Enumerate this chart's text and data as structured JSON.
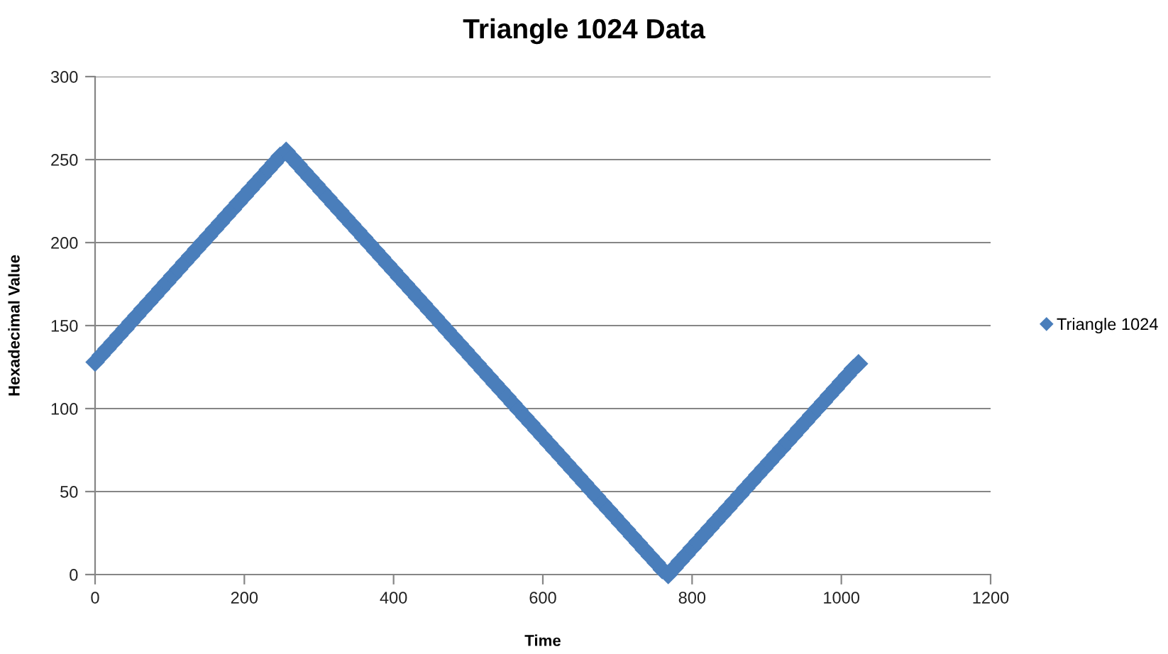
{
  "chart_data": {
    "type": "scatter",
    "title": "Triangle 1024 Data",
    "xlabel": "Time",
    "ylabel": "Hexadecimal Value",
    "x": [
      0,
      8,
      16,
      24,
      32,
      40,
      48,
      56,
      64,
      72,
      80,
      88,
      96,
      104,
      112,
      120,
      128,
      136,
      144,
      152,
      160,
      168,
      176,
      184,
      192,
      200,
      208,
      216,
      224,
      232,
      240,
      248,
      256,
      264,
      272,
      280,
      288,
      296,
      304,
      312,
      320,
      328,
      336,
      344,
      352,
      360,
      368,
      376,
      384,
      392,
      400,
      408,
      416,
      424,
      432,
      440,
      448,
      456,
      464,
      472,
      480,
      488,
      496,
      504,
      512,
      520,
      528,
      536,
      544,
      552,
      560,
      568,
      576,
      584,
      592,
      600,
      608,
      616,
      624,
      632,
      640,
      648,
      656,
      664,
      672,
      680,
      688,
      696,
      704,
      712,
      720,
      728,
      736,
      744,
      752,
      760,
      768,
      776,
      784,
      792,
      800,
      808,
      816,
      824,
      832,
      840,
      848,
      856,
      864,
      872,
      880,
      888,
      896,
      904,
      912,
      920,
      928,
      936,
      944,
      952,
      960,
      968,
      976,
      984,
      992,
      1000,
      1008,
      1016,
      1023
    ],
    "series": [
      {
        "name": "Triangle 1024",
        "color": "#4a7ebb",
        "values": [
          128,
          132,
          136,
          140,
          144,
          148,
          152,
          156,
          160,
          164,
          168,
          172,
          176,
          180,
          184,
          188,
          192,
          196,
          200,
          204,
          208,
          212,
          216,
          220,
          224,
          228,
          232,
          236,
          240,
          244,
          248,
          252,
          255,
          251,
          247,
          243,
          239,
          235,
          231,
          227,
          223,
          219,
          215,
          211,
          207,
          203,
          199,
          195,
          191,
          187,
          183,
          179,
          175,
          171,
          167,
          163,
          159,
          155,
          151,
          147,
          143,
          139,
          135,
          131,
          127,
          123,
          119,
          115,
          111,
          107,
          103,
          99,
          95,
          91,
          87,
          83,
          79,
          75,
          71,
          67,
          63,
          59,
          55,
          51,
          47,
          43,
          39,
          35,
          31,
          27,
          23,
          19,
          15,
          11,
          7,
          3,
          0,
          4,
          8,
          12,
          16,
          20,
          24,
          28,
          32,
          36,
          40,
          44,
          48,
          52,
          56,
          60,
          64,
          68,
          72,
          76,
          80,
          84,
          88,
          92,
          96,
          100,
          104,
          108,
          112,
          116,
          120,
          124,
          127
        ]
      }
    ],
    "xlim": [
      0,
      1200
    ],
    "xticks": [
      0,
      200,
      400,
      600,
      800,
      1000,
      1200
    ],
    "ylim": [
      0,
      300
    ],
    "yticks": [
      0,
      50,
      100,
      150,
      200,
      250,
      300
    ],
    "grid": "y",
    "legend": "right",
    "marker": "diamond"
  }
}
